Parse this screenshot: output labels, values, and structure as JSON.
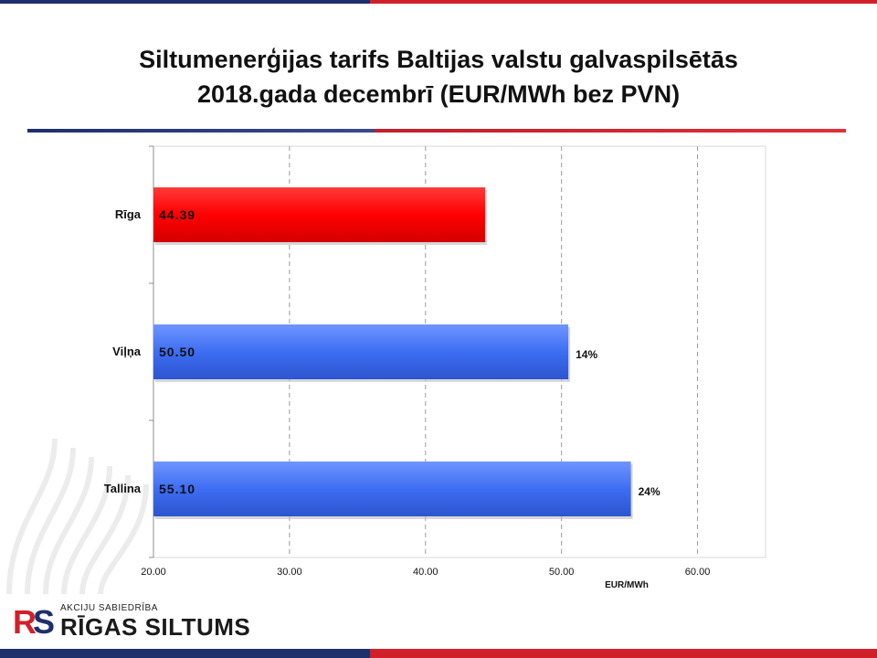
{
  "title_line1": "Siltumenerģijas tarifs Baltijas valstu galvaspilsētās",
  "title_line2": "2018.gada decembrī (EUR/MWh bez PVN)",
  "colors": {
    "riga": "#ff0000",
    "others": "#3d6df2",
    "brand_blue": "#1f2f6b",
    "brand_red": "#d0202a"
  },
  "logo": {
    "subtitle": "AKCIJU SABIEDRĪBA",
    "name": "RĪGAS SILTUMS"
  },
  "chart_data": {
    "type": "bar",
    "orientation": "horizontal",
    "categories": [
      "Rīga",
      "Viļņa",
      "Tallina"
    ],
    "values": [
      44.39,
      50.5,
      55.1
    ],
    "value_labels": [
      "44.39",
      "50.50",
      "55.10"
    ],
    "annotations": [
      "",
      "14%",
      "24%"
    ],
    "xlabel": "EUR/MWh",
    "xlim": [
      20,
      65
    ],
    "xticks": [
      "20.00",
      "30.00",
      "40.00",
      "50.00",
      "60.00"
    ],
    "xtick_values": [
      20,
      30,
      40,
      50,
      60
    ],
    "grid": "vertical dashed"
  }
}
